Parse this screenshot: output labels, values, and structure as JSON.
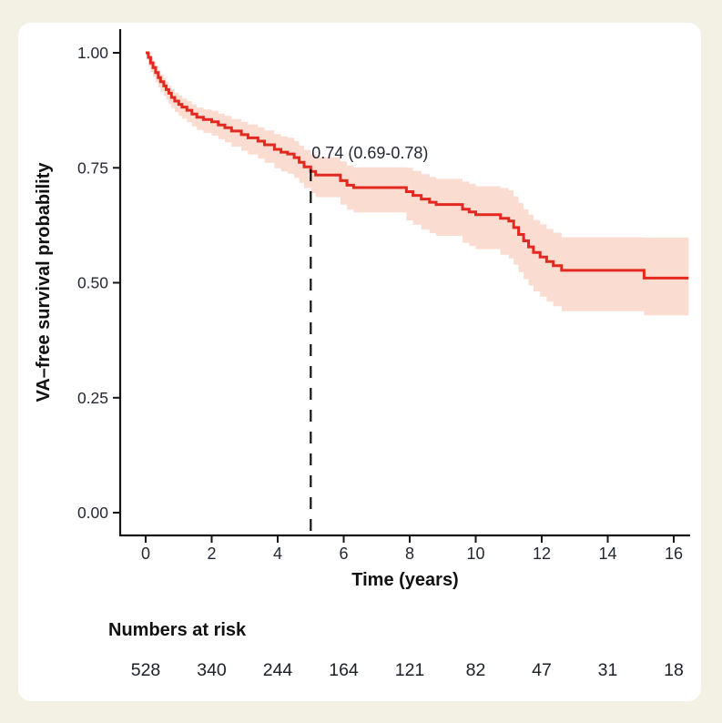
{
  "canvas": {
    "background_color": "#f2f1e3",
    "card_color": "#ffffff"
  },
  "chart_data": {
    "type": "line",
    "subtype": "kaplan-meier-step-with-confidence-band",
    "title": "",
    "xlabel": "Time (years)",
    "ylabel": "VA–free survival probability",
    "xlim": [
      0,
      16.5
    ],
    "ylim": [
      0,
      1
    ],
    "grid": false,
    "legend": "none",
    "x_ticks": [
      0,
      2,
      4,
      6,
      8,
      10,
      12,
      14,
      16
    ],
    "x_tick_labels": [
      "0",
      "2",
      "4",
      "6",
      "8",
      "10",
      "12",
      "14",
      "16"
    ],
    "y_ticks": [
      1.0,
      0.75,
      0.5,
      0.25,
      0.0
    ],
    "y_tick_labels": [
      "1.00",
      "0.75",
      "0.50",
      "0.25",
      "0.00"
    ],
    "line_color": "#e3281f",
    "band_color": "#fadcd0",
    "annotation": {
      "text": "0.74 (0.69-0.78)",
      "t": 5,
      "estimate": 0.74,
      "ci_lower": 0.69,
      "ci_upper": 0.78
    },
    "reference_line": {
      "type": "vertical-dashed",
      "t": 5,
      "color": "#111111"
    },
    "series": [
      {
        "name": "VA-free survival",
        "point_format": [
          "time_years",
          "survival",
          "ci_lower",
          "ci_upper"
        ],
        "points": [
          [
            0.0,
            1.0,
            1.0,
            1.0
          ],
          [
            0.08,
            0.99,
            0.971,
            1.0
          ],
          [
            0.15,
            0.978,
            0.958,
            0.993
          ],
          [
            0.22,
            0.968,
            0.948,
            0.983
          ],
          [
            0.3,
            0.957,
            0.936,
            0.972
          ],
          [
            0.38,
            0.946,
            0.925,
            0.962
          ],
          [
            0.45,
            0.937,
            0.916,
            0.953
          ],
          [
            0.55,
            0.928,
            0.906,
            0.945
          ],
          [
            0.62,
            0.92,
            0.898,
            0.937
          ],
          [
            0.7,
            0.912,
            0.889,
            0.929
          ],
          [
            0.78,
            0.903,
            0.88,
            0.921
          ],
          [
            0.88,
            0.895,
            0.871,
            0.913
          ],
          [
            1.0,
            0.888,
            0.863,
            0.907
          ],
          [
            1.1,
            0.882,
            0.857,
            0.901
          ],
          [
            1.25,
            0.875,
            0.849,
            0.895
          ],
          [
            1.4,
            0.867,
            0.84,
            0.888
          ],
          [
            1.55,
            0.86,
            0.832,
            0.881
          ],
          [
            1.75,
            0.855,
            0.826,
            0.877
          ],
          [
            2.0,
            0.85,
            0.82,
            0.874
          ],
          [
            2.2,
            0.843,
            0.812,
            0.868
          ],
          [
            2.4,
            0.837,
            0.805,
            0.863
          ],
          [
            2.6,
            0.83,
            0.796,
            0.856
          ],
          [
            2.9,
            0.822,
            0.787,
            0.85
          ],
          [
            3.1,
            0.815,
            0.779,
            0.844
          ],
          [
            3.4,
            0.808,
            0.77,
            0.838
          ],
          [
            3.6,
            0.8,
            0.761,
            0.831
          ],
          [
            3.9,
            0.79,
            0.749,
            0.823
          ],
          [
            4.1,
            0.784,
            0.742,
            0.818
          ],
          [
            4.3,
            0.78,
            0.737,
            0.815
          ],
          [
            4.5,
            0.772,
            0.728,
            0.808
          ],
          [
            4.65,
            0.762,
            0.717,
            0.798
          ],
          [
            4.8,
            0.752,
            0.706,
            0.789
          ],
          [
            5.0,
            0.742,
            0.695,
            0.78
          ],
          [
            5.15,
            0.734,
            0.686,
            0.773
          ],
          [
            5.9,
            0.722,
            0.67,
            0.764
          ],
          [
            6.1,
            0.712,
            0.659,
            0.755
          ],
          [
            6.3,
            0.707,
            0.653,
            0.751
          ],
          [
            7.9,
            0.698,
            0.635,
            0.75
          ],
          [
            8.1,
            0.69,
            0.626,
            0.743
          ],
          [
            8.35,
            0.682,
            0.616,
            0.736
          ],
          [
            8.6,
            0.675,
            0.608,
            0.73
          ],
          [
            8.8,
            0.67,
            0.602,
            0.726
          ],
          [
            9.6,
            0.66,
            0.587,
            0.72
          ],
          [
            9.8,
            0.654,
            0.58,
            0.715
          ],
          [
            10.0,
            0.648,
            0.573,
            0.71
          ],
          [
            10.75,
            0.64,
            0.561,
            0.706
          ],
          [
            11.0,
            0.634,
            0.553,
            0.701
          ],
          [
            11.15,
            0.62,
            0.539,
            0.688
          ],
          [
            11.3,
            0.605,
            0.523,
            0.673
          ],
          [
            11.45,
            0.591,
            0.508,
            0.66
          ],
          [
            11.6,
            0.578,
            0.494,
            0.648
          ],
          [
            11.75,
            0.566,
            0.481,
            0.636
          ],
          [
            11.95,
            0.556,
            0.47,
            0.627
          ],
          [
            12.15,
            0.546,
            0.459,
            0.617
          ],
          [
            12.35,
            0.537,
            0.449,
            0.609
          ],
          [
            12.6,
            0.527,
            0.438,
            0.599
          ],
          [
            15.1,
            0.51,
            0.429,
            0.598
          ],
          [
            16.45,
            0.51,
            0.427,
            0.6
          ]
        ]
      }
    ]
  },
  "risk_table": {
    "label": "Numbers at risk",
    "times": [
      0,
      2,
      4,
      6,
      8,
      10,
      12,
      14,
      16
    ],
    "values": [
      "528",
      "340",
      "244",
      "164",
      "121",
      "82",
      "47",
      "31",
      "18"
    ]
  }
}
